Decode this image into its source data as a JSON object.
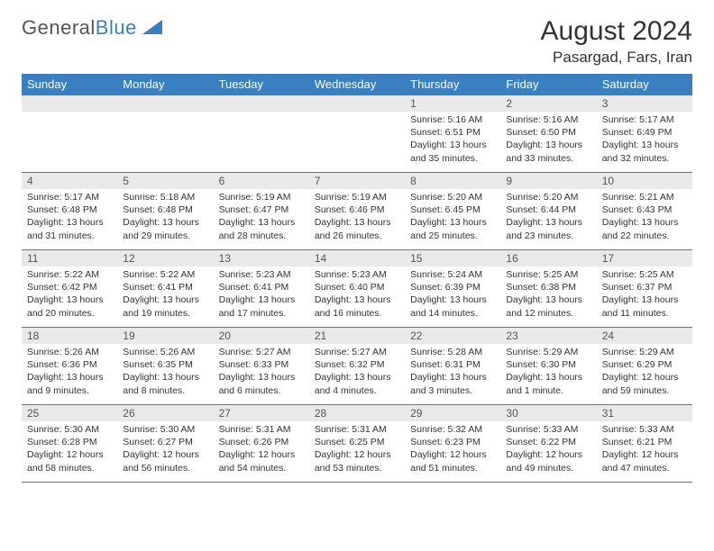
{
  "brand": {
    "part1": "General",
    "part2": "Blue"
  },
  "header": {
    "title": "August 2024",
    "location": "Pasargad, Fars, Iran"
  },
  "colors": {
    "accent": "#3a7fbf",
    "band": "#e9e9e9",
    "text": "#333333",
    "bg": "#ffffff"
  },
  "fonts": {
    "title_size": 30,
    "location_size": 17,
    "dayhead_size": 13,
    "body_size": 10.5
  },
  "day_headers": [
    "Sunday",
    "Monday",
    "Tuesday",
    "Wednesday",
    "Thursday",
    "Friday",
    "Saturday"
  ],
  "weeks": [
    [
      null,
      null,
      null,
      null,
      {
        "n": "1",
        "sunrise": "5:16 AM",
        "sunset": "6:51 PM",
        "daylight": "13 hours and 35 minutes."
      },
      {
        "n": "2",
        "sunrise": "5:16 AM",
        "sunset": "6:50 PM",
        "daylight": "13 hours and 33 minutes."
      },
      {
        "n": "3",
        "sunrise": "5:17 AM",
        "sunset": "6:49 PM",
        "daylight": "13 hours and 32 minutes."
      }
    ],
    [
      {
        "n": "4",
        "sunrise": "5:17 AM",
        "sunset": "6:48 PM",
        "daylight": "13 hours and 31 minutes."
      },
      {
        "n": "5",
        "sunrise": "5:18 AM",
        "sunset": "6:48 PM",
        "daylight": "13 hours and 29 minutes."
      },
      {
        "n": "6",
        "sunrise": "5:19 AM",
        "sunset": "6:47 PM",
        "daylight": "13 hours and 28 minutes."
      },
      {
        "n": "7",
        "sunrise": "5:19 AM",
        "sunset": "6:46 PM",
        "daylight": "13 hours and 26 minutes."
      },
      {
        "n": "8",
        "sunrise": "5:20 AM",
        "sunset": "6:45 PM",
        "daylight": "13 hours and 25 minutes."
      },
      {
        "n": "9",
        "sunrise": "5:20 AM",
        "sunset": "6:44 PM",
        "daylight": "13 hours and 23 minutes."
      },
      {
        "n": "10",
        "sunrise": "5:21 AM",
        "sunset": "6:43 PM",
        "daylight": "13 hours and 22 minutes."
      }
    ],
    [
      {
        "n": "11",
        "sunrise": "5:22 AM",
        "sunset": "6:42 PM",
        "daylight": "13 hours and 20 minutes."
      },
      {
        "n": "12",
        "sunrise": "5:22 AM",
        "sunset": "6:41 PM",
        "daylight": "13 hours and 19 minutes."
      },
      {
        "n": "13",
        "sunrise": "5:23 AM",
        "sunset": "6:41 PM",
        "daylight": "13 hours and 17 minutes."
      },
      {
        "n": "14",
        "sunrise": "5:23 AM",
        "sunset": "6:40 PM",
        "daylight": "13 hours and 16 minutes."
      },
      {
        "n": "15",
        "sunrise": "5:24 AM",
        "sunset": "6:39 PM",
        "daylight": "13 hours and 14 minutes."
      },
      {
        "n": "16",
        "sunrise": "5:25 AM",
        "sunset": "6:38 PM",
        "daylight": "13 hours and 12 minutes."
      },
      {
        "n": "17",
        "sunrise": "5:25 AM",
        "sunset": "6:37 PM",
        "daylight": "13 hours and 11 minutes."
      }
    ],
    [
      {
        "n": "18",
        "sunrise": "5:26 AM",
        "sunset": "6:36 PM",
        "daylight": "13 hours and 9 minutes."
      },
      {
        "n": "19",
        "sunrise": "5:26 AM",
        "sunset": "6:35 PM",
        "daylight": "13 hours and 8 minutes."
      },
      {
        "n": "20",
        "sunrise": "5:27 AM",
        "sunset": "6:33 PM",
        "daylight": "13 hours and 6 minutes."
      },
      {
        "n": "21",
        "sunrise": "5:27 AM",
        "sunset": "6:32 PM",
        "daylight": "13 hours and 4 minutes."
      },
      {
        "n": "22",
        "sunrise": "5:28 AM",
        "sunset": "6:31 PM",
        "daylight": "13 hours and 3 minutes."
      },
      {
        "n": "23",
        "sunrise": "5:29 AM",
        "sunset": "6:30 PM",
        "daylight": "13 hours and 1 minute."
      },
      {
        "n": "24",
        "sunrise": "5:29 AM",
        "sunset": "6:29 PM",
        "daylight": "12 hours and 59 minutes."
      }
    ],
    [
      {
        "n": "25",
        "sunrise": "5:30 AM",
        "sunset": "6:28 PM",
        "daylight": "12 hours and 58 minutes."
      },
      {
        "n": "26",
        "sunrise": "5:30 AM",
        "sunset": "6:27 PM",
        "daylight": "12 hours and 56 minutes."
      },
      {
        "n": "27",
        "sunrise": "5:31 AM",
        "sunset": "6:26 PM",
        "daylight": "12 hours and 54 minutes."
      },
      {
        "n": "28",
        "sunrise": "5:31 AM",
        "sunset": "6:25 PM",
        "daylight": "12 hours and 53 minutes."
      },
      {
        "n": "29",
        "sunrise": "5:32 AM",
        "sunset": "6:23 PM",
        "daylight": "12 hours and 51 minutes."
      },
      {
        "n": "30",
        "sunrise": "5:33 AM",
        "sunset": "6:22 PM",
        "daylight": "12 hours and 49 minutes."
      },
      {
        "n": "31",
        "sunrise": "5:33 AM",
        "sunset": "6:21 PM",
        "daylight": "12 hours and 47 minutes."
      }
    ]
  ],
  "labels": {
    "sunrise": "Sunrise:",
    "sunset": "Sunset:",
    "daylight": "Daylight:"
  }
}
